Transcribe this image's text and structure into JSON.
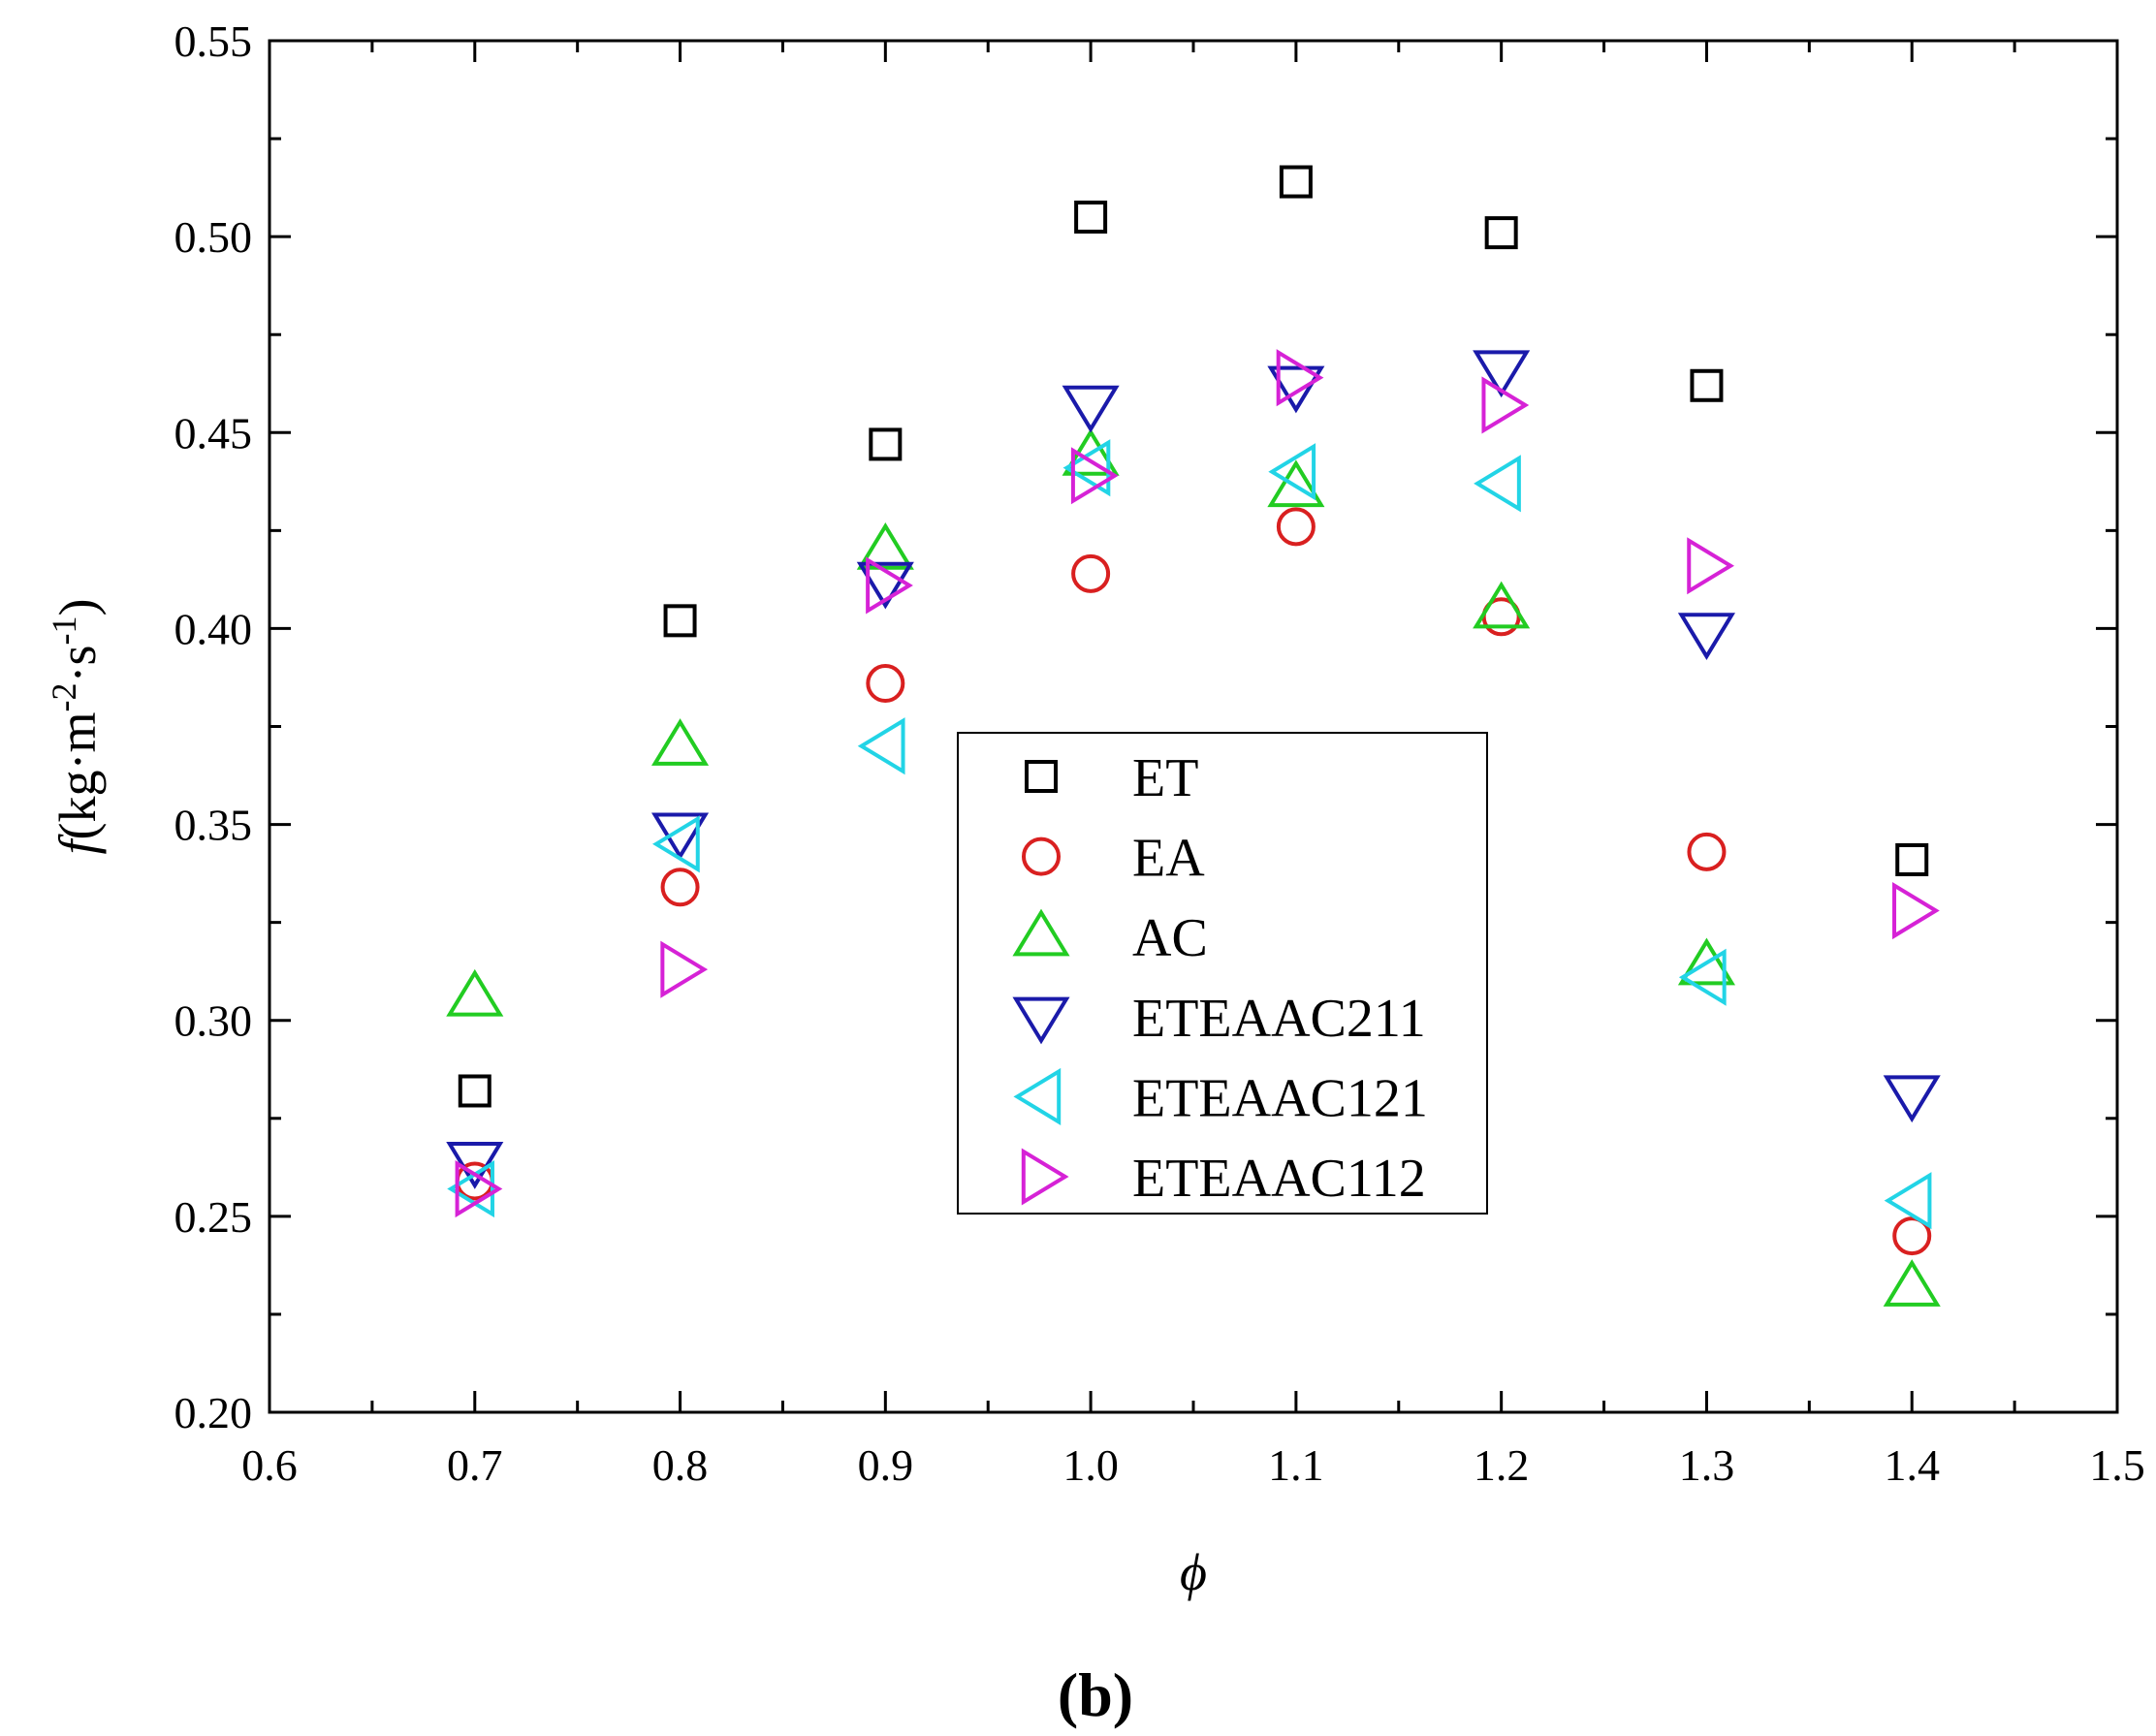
{
  "chart_data": {
    "type": "scatter",
    "title": "",
    "panel_label": "(b)",
    "xlabel": "ϕ",
    "ylabel": {
      "italic": "f",
      "text": "(kg·m",
      "sup1": "-2",
      "mid": "·s",
      "sup2": "-1",
      "end": ")"
    },
    "xlim": [
      0.6,
      1.5
    ],
    "ylim": [
      0.2,
      0.55
    ],
    "xticks": [
      0.6,
      0.7,
      0.8,
      0.9,
      1.0,
      1.1,
      1.2,
      1.3,
      1.4,
      1.5
    ],
    "xtick_labels": [
      "0.6",
      "0.7",
      "0.8",
      "0.9",
      "1.0",
      "1.1",
      "1.2",
      "1.3",
      "1.4",
      "1.5"
    ],
    "yticks": [
      0.2,
      0.25,
      0.3,
      0.35,
      0.4,
      0.45,
      0.5,
      0.55
    ],
    "ytick_labels": [
      "0.20",
      "0.25",
      "0.30",
      "0.35",
      "0.40",
      "0.45",
      "0.50",
      "0.55"
    ],
    "grid": false,
    "legend_position": "center",
    "x": [
      0.7,
      0.8,
      0.9,
      1.0,
      1.1,
      1.2,
      1.3,
      1.4
    ],
    "series": [
      {
        "name": "ET",
        "marker": "square",
        "color": "#000000",
        "values": [
          0.282,
          0.402,
          0.447,
          0.505,
          0.514,
          0.501,
          0.462,
          0.341
        ]
      },
      {
        "name": "EA",
        "marker": "circle",
        "color": "#d92020",
        "values": [
          0.259,
          0.334,
          0.386,
          0.414,
          0.426,
          0.403,
          0.343,
          0.245
        ]
      },
      {
        "name": "AC",
        "marker": "triangle-up",
        "color": "#22cc22",
        "values": [
          0.306,
          0.37,
          0.42,
          0.444,
          0.436,
          0.405,
          0.314,
          0.232
        ]
      },
      {
        "name": "ETEAAC211",
        "marker": "triangle-down",
        "color": "#1a1aaa",
        "values": [
          0.264,
          0.348,
          0.412,
          0.457,
          0.462,
          0.466,
          0.399,
          0.281
        ]
      },
      {
        "name": "ETEAAC121",
        "marker": "triangle-left",
        "color": "#22d4e6",
        "values": [
          0.257,
          0.345,
          0.37,
          0.441,
          0.44,
          0.437,
          0.311,
          0.254
        ]
      },
      {
        "name": "ETEAAC112",
        "marker": "triangle-right",
        "color": "#d622d6",
        "values": [
          0.257,
          0.313,
          0.411,
          0.439,
          0.464,
          0.457,
          0.416,
          0.328
        ]
      }
    ]
  }
}
